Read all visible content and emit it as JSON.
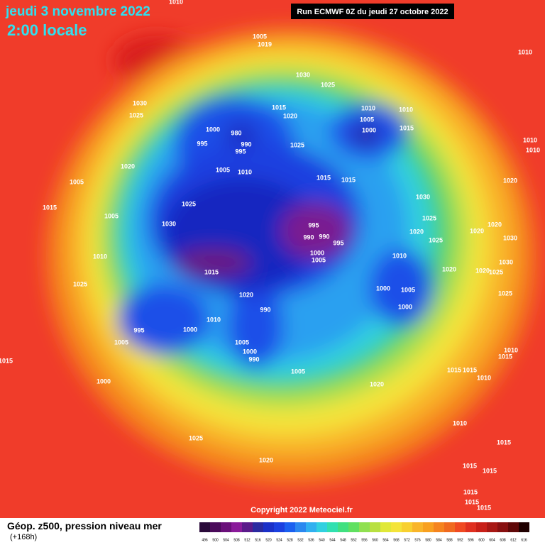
{
  "header": {
    "date": "jeudi 3 novembre 2022",
    "time": "2:00 locale",
    "run": "Run ECMWF 0Z du jeudi 27 octobre 2022"
  },
  "copyright": "Copyright 2022 Meteociel.fr",
  "legend": {
    "title": "Géop. z500, pression niveau mer",
    "subtitle": "(+168h)",
    "labels": [
      496,
      500,
      504,
      508,
      512,
      516,
      520,
      524,
      528,
      532,
      536,
      540,
      544,
      548,
      552,
      556,
      560,
      564,
      568,
      572,
      576,
      580,
      584,
      588,
      592,
      596,
      600,
      604,
      608,
      612,
      616
    ],
    "colors": [
      "#2a0a3a",
      "#4a0a5a",
      "#6a107a",
      "#8a1a9a",
      "#5a1a8a",
      "#2a2aa0",
      "#1a30c8",
      "#1a40e0",
      "#1a60f0",
      "#2a88f0",
      "#30b0f0",
      "#30d0e0",
      "#30e0b0",
      "#40e080",
      "#60e060",
      "#90e050",
      "#b8e040",
      "#e0e838",
      "#f4e43a",
      "#f8d030",
      "#f9b52a",
      "#f8a020",
      "#f5841f",
      "#f06a20",
      "#f04a22",
      "#e03020",
      "#c82018",
      "#a81814",
      "#881010",
      "#600808",
      "#200000"
    ]
  },
  "pressure_labels": [
    1005,
    1019,
    1030,
    1025,
    1010,
    1010,
    1030,
    1025,
    1015,
    1020,
    1000,
    980,
    990,
    995,
    995,
    1025,
    1005,
    1010,
    1020,
    1005,
    1015,
    1005,
    1025,
    1030,
    1010,
    1025,
    1015,
    1020,
    990,
    1010,
    1000,
    995,
    1005,
    1005,
    1000,
    990,
    1005,
    1000,
    1015,
    1025,
    1020,
    1015,
    1015,
    995,
    990,
    990,
    995,
    1000,
    1005,
    1010,
    1030,
    1025,
    1020,
    1025,
    1020,
    1000,
    1005,
    1000,
    1010,
    1010,
    1005,
    1000,
    1015,
    1010,
    1010,
    1020,
    1020,
    1020,
    1030,
    1020,
    1025,
    1030,
    1025,
    1020,
    1010,
    1015,
    1015,
    1015,
    1010,
    1010,
    1015,
    1015,
    1015,
    1015,
    1015,
    1015
  ]
}
